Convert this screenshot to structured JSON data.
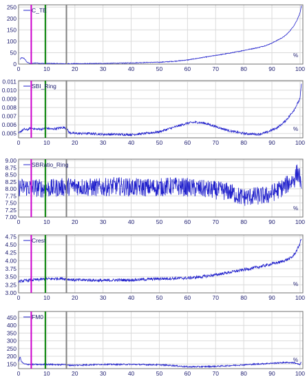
{
  "chart_data": [
    {
      "type": "line",
      "legend": "C_TE",
      "x_unit": "%",
      "xlim": [
        0,
        101
      ],
      "x_ticks": [
        "0",
        "10",
        "20",
        "30",
        "40",
        "50",
        "60",
        "70",
        "80",
        "90",
        "100"
      ],
      "ylim": [
        0,
        260
      ],
      "y_ticks": [
        "0",
        "50",
        "100",
        "150",
        "200",
        "250"
      ],
      "grid": true,
      "legend_position": "top-left",
      "series": [
        {
          "x": [
            0.5,
            1,
            2,
            3,
            4,
            5,
            6,
            8,
            10,
            15,
            20,
            25,
            30,
            35,
            40,
            45,
            50,
            55,
            60,
            65,
            70,
            75,
            78,
            80,
            82,
            85,
            88,
            90,
            92,
            94,
            95,
            96,
            97,
            98,
            99,
            100,
            100.5
          ],
          "y": [
            20,
            28,
            25,
            8,
            3,
            3,
            5,
            3,
            3,
            2,
            2,
            2,
            3,
            4,
            5,
            7,
            8,
            12,
            18,
            28,
            38,
            48,
            55,
            60,
            65,
            72,
            82,
            92,
            105,
            118,
            128,
            140,
            155,
            172,
            195,
            225,
            255
          ]
        }
      ],
      "markers": [
        {
          "x": 4.5,
          "color": "#cc00cc"
        },
        {
          "x": 9.5,
          "color": "#008000"
        },
        {
          "x": 17,
          "color": "#808080"
        }
      ]
    },
    {
      "type": "line",
      "legend": "SBI_Ring",
      "x_unit": "%",
      "xlim": [
        0,
        101
      ],
      "x_ticks": [
        "0",
        "10",
        "20",
        "30",
        "40",
        "50",
        "60",
        "70",
        "80",
        "90",
        "100"
      ],
      "ylim": [
        0.0045,
        0.0111
      ],
      "y_ticks": [
        "0.005",
        "0.006",
        "0.007",
        "0.008",
        "0.009",
        "0.010",
        "0.011"
      ],
      "grid": true,
      "legend_position": "top-left",
      "series": [
        {
          "x": [
            0,
            1,
            2,
            3,
            4,
            5,
            6,
            8,
            10,
            12,
            14,
            16,
            17,
            18,
            20,
            25,
            30,
            35,
            40,
            45,
            50,
            55,
            58,
            60,
            63,
            66,
            70,
            75,
            80,
            85,
            88,
            90,
            92,
            94,
            96,
            98,
            100,
            100.5
          ],
          "y": [
            0.005,
            0.0053,
            0.0055,
            0.0054,
            0.0056,
            0.0056,
            0.0055,
            0.0055,
            0.0056,
            0.0055,
            0.0056,
            0.0057,
            0.0056,
            0.0051,
            0.005,
            0.005,
            0.0049,
            0.0049,
            0.00487,
            0.005,
            0.0052,
            0.0057,
            0.006,
            0.0062,
            0.0063,
            0.0062,
            0.0058,
            0.0053,
            0.005,
            0.0049,
            0.0051,
            0.0054,
            0.0057,
            0.0062,
            0.0069,
            0.0078,
            0.009,
            0.0108
          ]
        }
      ],
      "markers": [
        {
          "x": 4.5,
          "color": "#cc00cc"
        },
        {
          "x": 9.5,
          "color": "#008000"
        },
        {
          "x": 17,
          "color": "#808080"
        }
      ]
    },
    {
      "type": "line",
      "legend": "SBRatio_Ring",
      "x_unit": "%",
      "xlim": [
        0,
        101
      ],
      "x_ticks": [
        "0",
        "10",
        "20",
        "30",
        "40",
        "50",
        "60",
        "70",
        "80",
        "90",
        "100"
      ],
      "ylim": [
        7.0,
        9.05
      ],
      "y_ticks": [
        "7.00",
        "7.25",
        "7.50",
        "7.75",
        "8.00",
        "8.25",
        "8.50",
        "8.75",
        "9.00"
      ],
      "grid": true,
      "legend_position": "top-left",
      "series": [
        {
          "x": [
            0,
            5,
            10,
            15,
            20,
            25,
            30,
            35,
            40,
            45,
            50,
            55,
            60,
            65,
            70,
            75,
            78,
            80,
            85,
            88,
            90,
            92,
            94,
            96,
            98,
            99,
            100,
            100.5
          ],
          "y": [
            8.05,
            8.05,
            8.0,
            8.05,
            8.1,
            8.05,
            8.05,
            8.1,
            8.05,
            8.05,
            8.05,
            8.1,
            8.05,
            8.0,
            7.95,
            7.9,
            7.75,
            7.7,
            7.75,
            7.75,
            7.85,
            7.95,
            8.05,
            8.2,
            8.35,
            8.6,
            8.4,
            7.7
          ]
        }
      ],
      "markers": [
        {
          "x": 4.5,
          "color": "#cc00cc"
        },
        {
          "x": 9.5,
          "color": "#008000"
        },
        {
          "x": 17,
          "color": "#808080"
        }
      ]
    },
    {
      "type": "line",
      "legend": "Crest",
      "x_unit": "%",
      "xlim": [
        0,
        101
      ],
      "x_ticks": [
        "0",
        "10",
        "20",
        "30",
        "40",
        "50",
        "60",
        "70",
        "80",
        "90",
        "100"
      ],
      "ylim": [
        3.0,
        4.8
      ],
      "y_ticks": [
        "3.00",
        "3.25",
        "3.50",
        "3.75",
        "4.00",
        "4.25",
        "4.50",
        "4.75"
      ],
      "grid": true,
      "legend_position": "top-left",
      "series": [
        {
          "x": [
            0,
            2,
            5,
            10,
            15,
            20,
            25,
            30,
            35,
            40,
            45,
            50,
            55,
            60,
            65,
            70,
            75,
            80,
            85,
            90,
            93,
            95,
            97,
            98,
            99,
            100,
            100.5
          ],
          "y": [
            3.35,
            3.38,
            3.4,
            3.43,
            3.45,
            3.4,
            3.4,
            3.38,
            3.4,
            3.4,
            3.42,
            3.44,
            3.45,
            3.46,
            3.5,
            3.56,
            3.64,
            3.72,
            3.8,
            3.9,
            3.96,
            4.02,
            4.1,
            4.2,
            4.35,
            4.55,
            4.7
          ]
        }
      ],
      "markers": [
        {
          "x": 4.5,
          "color": "#cc00cc"
        },
        {
          "x": 9.5,
          "color": "#008000"
        },
        {
          "x": 17,
          "color": "#808080"
        }
      ]
    },
    {
      "type": "line",
      "legend": "FM0",
      "x_unit": "%",
      "xlim": [
        0,
        101
      ],
      "x_ticks": [
        "0",
        "10",
        "20",
        "30",
        "40",
        "50",
        "60",
        "70",
        "80",
        "90",
        "100"
      ],
      "ylim": [
        120,
        490
      ],
      "y_ticks": [
        "150",
        "200",
        "250",
        "300",
        "350",
        "400",
        "450"
      ],
      "grid": true,
      "legend_position": "top-left",
      "series": [
        {
          "x": [
            0,
            0.5,
            1,
            2,
            3,
            4,
            5,
            8,
            10,
            15,
            16,
            17,
            20,
            25,
            30,
            35,
            40,
            45,
            50,
            55,
            58,
            60,
            65,
            70,
            75,
            80,
            85,
            90,
            95,
            98,
            100,
            100.5
          ],
          "y": [
            160,
            200,
            165,
            150,
            148,
            148,
            147,
            147,
            148,
            145,
            150,
            143,
            142,
            145,
            148,
            147,
            148,
            146,
            145,
            140,
            135,
            132,
            133,
            135,
            140,
            145,
            150,
            155,
            160,
            158,
            145,
            165
          ]
        }
      ],
      "markers": [
        {
          "x": 4.5,
          "color": "#cc00cc"
        },
        {
          "x": 9.5,
          "color": "#008000"
        },
        {
          "x": 17,
          "color": "#808080"
        }
      ]
    }
  ],
  "colors": {
    "series_line": "#2222cc",
    "frame": "#707070",
    "grid": "#dadada",
    "tick_text": "#1a1a6e"
  }
}
